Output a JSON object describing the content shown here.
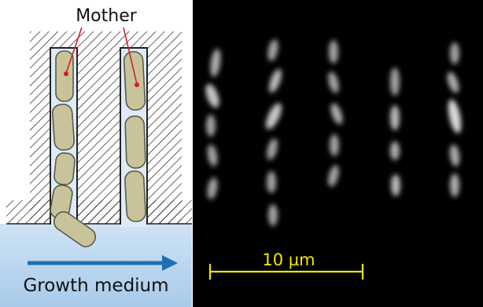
{
  "schematic": {
    "mother_label": "Mother",
    "medium_label": "Growth medium",
    "colors": {
      "hatch": "#222222",
      "channel_fill": "#dcebf7",
      "cell_fill": "#c8c39a",
      "cell_stroke": "#5a5a4a",
      "medium_top": "#c9dff2",
      "medium_bottom": "#a9cbea",
      "arrow": "#1f6fb5",
      "pointer": "#d21f1f"
    }
  },
  "micrograph": {
    "scale_bar_label": "10 µm",
    "colors": {
      "background": "#000000",
      "cell_glow": "#e6e6e6",
      "scale_bar": "#f2e600"
    }
  }
}
